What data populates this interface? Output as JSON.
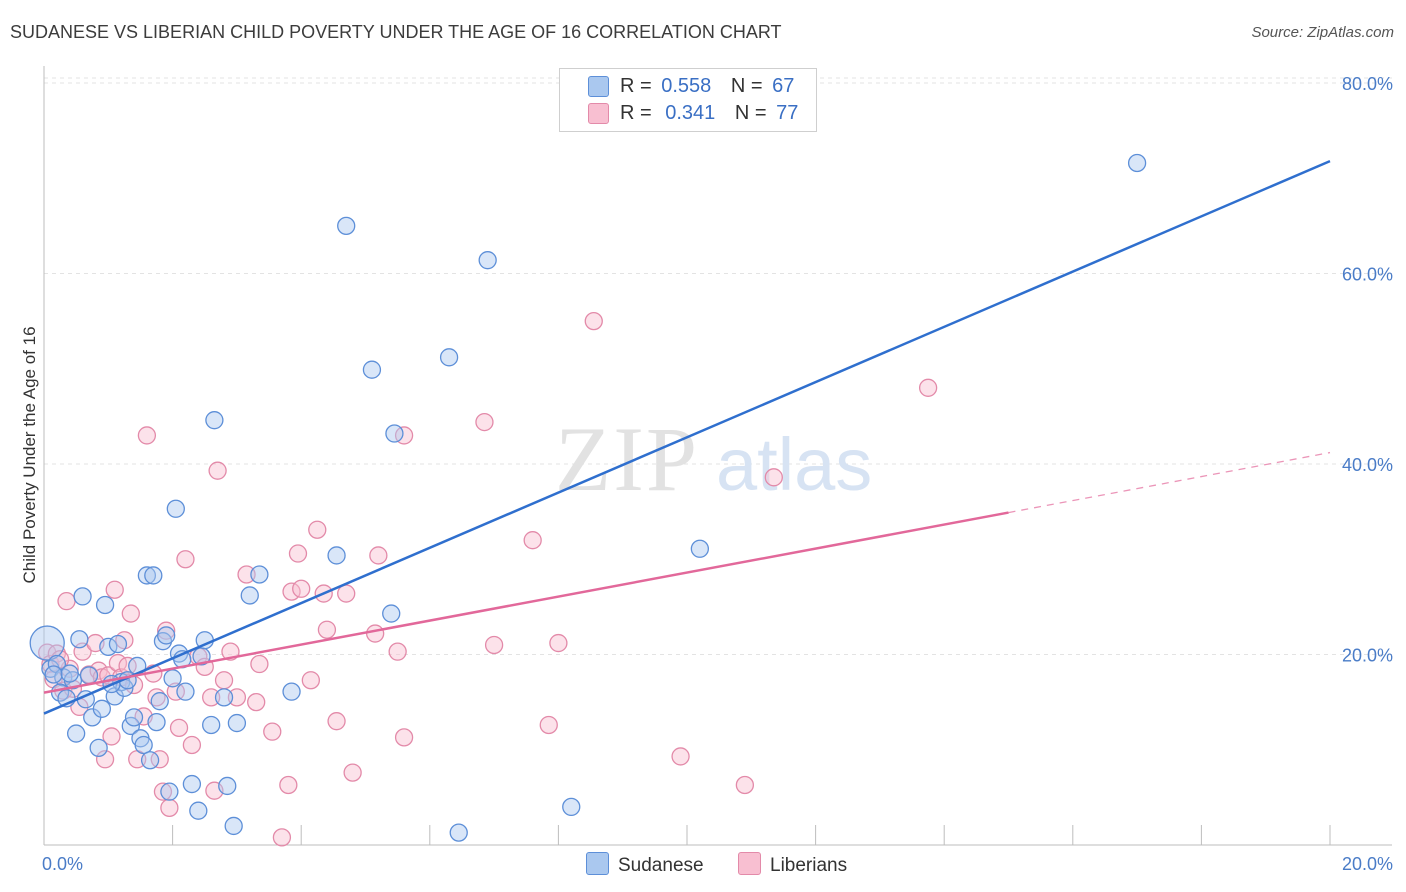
{
  "title": "SUDANESE VS LIBERIAN CHILD POVERTY UNDER THE AGE OF 16 CORRELATION CHART",
  "source": "Source: ZipAtlas.com",
  "watermark": {
    "zip": "ZIP",
    "atlas": "atlas"
  },
  "legend": {
    "r_label": "R =",
    "n_label": "N =",
    "sudanese": {
      "r": "0.558",
      "n": "67",
      "fill": "#aac8ef",
      "stroke": "#5d8fd8"
    },
    "liberians": {
      "r": "0.341",
      "n": "77",
      "fill": "#f8bfd1",
      "stroke": "#e38aa9"
    }
  },
  "bottom_legend": {
    "sudanese": "Sudanese",
    "liberians": "Liberians"
  },
  "chart_data": {
    "type": "scatter",
    "xlabel": "",
    "ylabel": "Child Poverty Under the Age of 16",
    "xlim": [
      0,
      20
    ],
    "ylim": [
      0,
      82
    ],
    "x_tick_labels": [
      "0.0%",
      "20.0%"
    ],
    "y_ticks": [
      20,
      40,
      60,
      80
    ],
    "y_tick_labels": [
      "20.0%",
      "40.0%",
      "60.0%",
      "80.0%"
    ],
    "grid": true,
    "colors": {
      "sudanese": "#2f6fce",
      "liberians": "#e2689a"
    },
    "series": [
      {
        "name": "Sudanese",
        "r": 0.558,
        "n": 67,
        "trend": {
          "x": [
            0,
            20
          ],
          "y": [
            13.8,
            71.8
          ],
          "dashed_from": null
        },
        "points": [
          [
            0.05,
            21.2
          ],
          [
            0.1,
            18.5
          ],
          [
            0.2,
            19.0
          ],
          [
            0.3,
            17.6
          ],
          [
            0.25,
            16.0
          ],
          [
            0.35,
            15.4
          ],
          [
            0.45,
            17.3
          ],
          [
            0.5,
            11.7
          ],
          [
            0.55,
            21.6
          ],
          [
            0.6,
            26.1
          ],
          [
            0.65,
            15.3
          ],
          [
            0.7,
            17.8
          ],
          [
            0.75,
            13.4
          ],
          [
            0.85,
            10.2
          ],
          [
            0.9,
            14.3
          ],
          [
            0.95,
            25.2
          ],
          [
            1.0,
            20.8
          ],
          [
            1.1,
            15.6
          ],
          [
            1.15,
            21.1
          ],
          [
            1.2,
            17.1
          ],
          [
            1.25,
            16.5
          ],
          [
            1.3,
            17.3
          ],
          [
            1.35,
            12.5
          ],
          [
            1.4,
            13.4
          ],
          [
            1.45,
            18.8
          ],
          [
            1.5,
            11.2
          ],
          [
            1.55,
            10.5
          ],
          [
            1.6,
            28.3
          ],
          [
            1.65,
            8.9
          ],
          [
            1.7,
            28.3
          ],
          [
            1.75,
            12.9
          ],
          [
            1.8,
            15.1
          ],
          [
            1.85,
            21.4
          ],
          [
            1.9,
            22.0
          ],
          [
            1.95,
            5.6
          ],
          [
            2.0,
            17.5
          ],
          [
            2.05,
            35.3
          ],
          [
            2.1,
            20.1
          ],
          [
            2.2,
            16.1
          ],
          [
            2.3,
            6.4
          ],
          [
            2.4,
            3.6
          ],
          [
            2.45,
            19.8
          ],
          [
            2.5,
            21.5
          ],
          [
            2.6,
            12.6
          ],
          [
            2.65,
            44.6
          ],
          [
            2.8,
            15.5
          ],
          [
            2.85,
            6.2
          ],
          [
            2.95,
            2.0
          ],
          [
            3.0,
            12.8
          ],
          [
            3.2,
            26.2
          ],
          [
            3.35,
            28.4
          ],
          [
            3.85,
            16.1
          ],
          [
            4.55,
            30.4
          ],
          [
            4.7,
            65.0
          ],
          [
            5.1,
            49.9
          ],
          [
            5.4,
            24.3
          ],
          [
            5.45,
            43.2
          ],
          [
            6.3,
            51.2
          ],
          [
            6.45,
            1.3
          ],
          [
            6.9,
            61.4
          ],
          [
            8.2,
            4.0
          ],
          [
            10.2,
            31.1
          ],
          [
            17.0,
            71.6
          ],
          [
            0.15,
            17.9
          ],
          [
            0.4,
            18.0
          ],
          [
            1.05,
            16.9
          ],
          [
            2.15,
            19.5
          ]
        ]
      },
      {
        "name": "Liberians",
        "r": 0.341,
        "n": 77,
        "trend": {
          "x": [
            0,
            15
          ],
          "y": [
            16.0,
            34.9
          ],
          "dashed_from": 15,
          "dashed_to": [
            20,
            41.2
          ]
        },
        "points": [
          [
            0.05,
            20.2
          ],
          [
            0.1,
            19.0
          ],
          [
            0.15,
            17.4
          ],
          [
            0.2,
            20.1
          ],
          [
            0.3,
            16.2
          ],
          [
            0.35,
            25.6
          ],
          [
            0.4,
            18.5
          ],
          [
            0.45,
            16.4
          ],
          [
            0.55,
            14.5
          ],
          [
            0.6,
            20.3
          ],
          [
            0.7,
            17.9
          ],
          [
            0.8,
            21.2
          ],
          [
            0.85,
            18.3
          ],
          [
            0.9,
            17.6
          ],
          [
            0.95,
            9.0
          ],
          [
            1.0,
            17.8
          ],
          [
            1.05,
            11.4
          ],
          [
            1.1,
            26.8
          ],
          [
            1.15,
            19.1
          ],
          [
            1.2,
            17.6
          ],
          [
            1.25,
            21.5
          ],
          [
            1.3,
            18.8
          ],
          [
            1.35,
            24.3
          ],
          [
            1.45,
            9.0
          ],
          [
            1.6,
            43.0
          ],
          [
            1.7,
            18.0
          ],
          [
            1.75,
            15.5
          ],
          [
            1.8,
            9.0
          ],
          [
            1.85,
            5.6
          ],
          [
            1.9,
            22.5
          ],
          [
            1.95,
            3.9
          ],
          [
            2.05,
            16.1
          ],
          [
            2.1,
            12.3
          ],
          [
            2.2,
            30.0
          ],
          [
            2.3,
            10.5
          ],
          [
            2.4,
            19.8
          ],
          [
            2.6,
            15.5
          ],
          [
            2.65,
            5.7
          ],
          [
            2.7,
            39.3
          ],
          [
            2.8,
            17.3
          ],
          [
            2.9,
            20.3
          ],
          [
            3.0,
            15.5
          ],
          [
            3.15,
            28.4
          ],
          [
            3.35,
            19.0
          ],
          [
            3.55,
            11.9
          ],
          [
            3.8,
            6.3
          ],
          [
            3.85,
            26.6
          ],
          [
            3.95,
            30.6
          ],
          [
            4.0,
            26.9
          ],
          [
            4.15,
            17.3
          ],
          [
            4.25,
            33.1
          ],
          [
            4.35,
            26.4
          ],
          [
            4.4,
            22.6
          ],
          [
            4.55,
            13.0
          ],
          [
            4.7,
            26.4
          ],
          [
            4.8,
            7.6
          ],
          [
            5.15,
            22.2
          ],
          [
            5.2,
            30.4
          ],
          [
            5.5,
            20.3
          ],
          [
            5.6,
            11.3
          ],
          [
            5.6,
            43.0
          ],
          [
            6.85,
            44.4
          ],
          [
            7.0,
            21.0
          ],
          [
            7.6,
            32.0
          ],
          [
            7.85,
            12.6
          ],
          [
            8.0,
            21.2
          ],
          [
            8.55,
            55.0
          ],
          [
            9.9,
            9.3
          ],
          [
            10.9,
            6.3
          ],
          [
            11.35,
            38.6
          ],
          [
            13.75,
            48.0
          ],
          [
            3.7,
            0.8
          ],
          [
            0.25,
            19.5
          ],
          [
            1.55,
            13.5
          ],
          [
            2.5,
            18.7
          ],
          [
            3.3,
            15.0
          ],
          [
            1.4,
            16.8
          ]
        ]
      }
    ]
  }
}
